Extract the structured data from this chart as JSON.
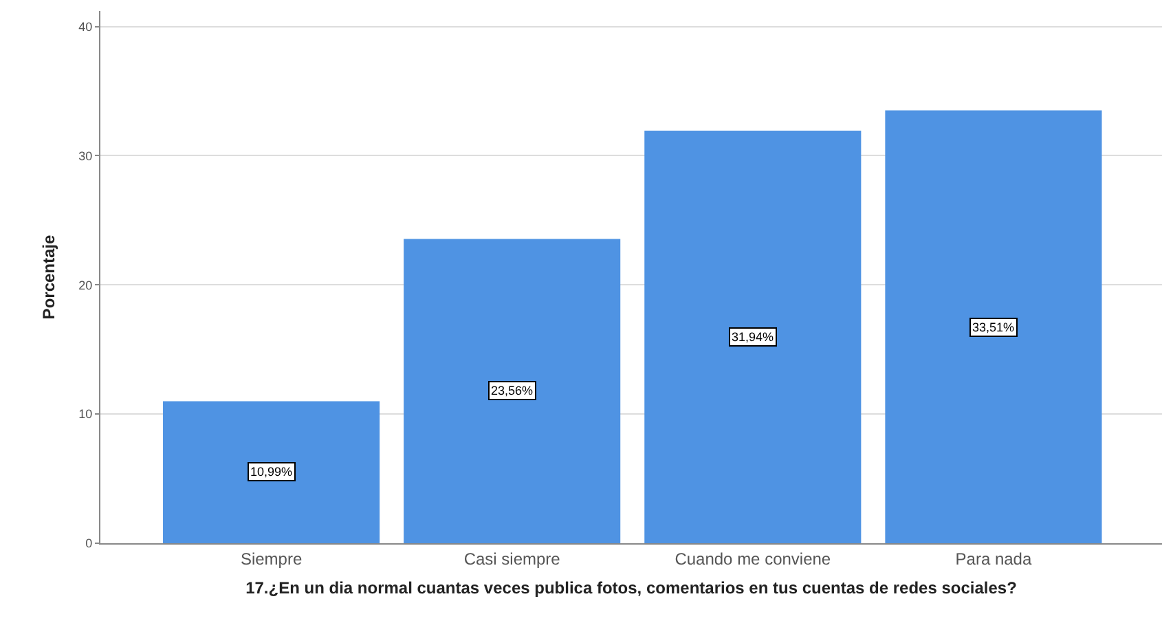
{
  "chart_data": {
    "type": "bar",
    "xlabel": "17.¿En un dia normal cuantas veces publica fotos, comentarios en tus cuentas de redes sociales?",
    "ylabel": "Porcentaje",
    "categories": [
      "Siempre",
      "Casi siempre",
      "Cuando me conviene",
      "Para nada"
    ],
    "values": [
      10.99,
      23.56,
      31.94,
      33.51
    ],
    "value_labels": [
      "10,99%",
      "23,56%",
      "31,94%",
      "33,51%"
    ],
    "color": "#4f93e3",
    "ylim": [
      0,
      41.2
    ],
    "yticks": [
      0,
      10,
      20,
      30,
      40
    ],
    "grid": "y"
  }
}
